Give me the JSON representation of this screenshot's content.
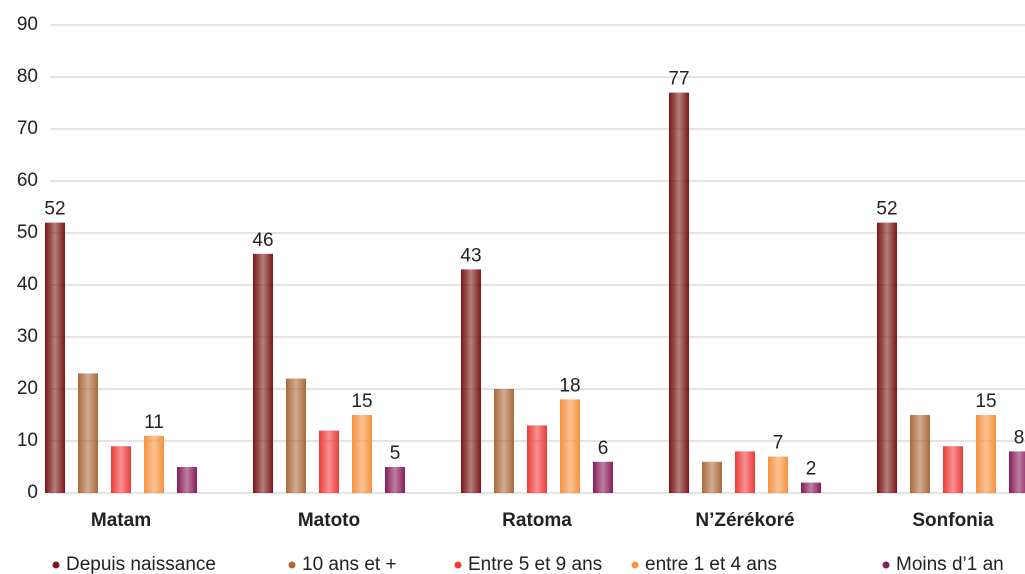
{
  "chart_data": {
    "type": "bar",
    "categories": [
      "Matam",
      "Matoto",
      "Ratoma",
      "N’Zérékoré",
      "Sonfonia"
    ],
    "series": [
      {
        "name": "Depuis naissance",
        "color": "#7a1616",
        "values": [
          52,
          46,
          43,
          77,
          52
        ],
        "value_labels": [
          52,
          46,
          43,
          77,
          52
        ]
      },
      {
        "name": "10 ans et +",
        "color": "#a86a3a",
        "values": [
          23,
          22,
          20,
          6,
          15
        ]
      },
      {
        "name": "Entre 5 et 9 ans",
        "color": "#ee3a3a",
        "values": [
          9,
          12,
          13,
          8,
          9
        ]
      },
      {
        "name": "entre 1 et 4 ans",
        "color": "#f7923e",
        "values": [
          11,
          15,
          18,
          7,
          15
        ],
        "value_labels": [
          11,
          15,
          18,
          7,
          15
        ]
      },
      {
        "name": "Moins d’1 an",
        "color": "#861a5a",
        "values": [
          5,
          5,
          6,
          2,
          8
        ],
        "value_labels": [
          null,
          5,
          6,
          2,
          8
        ]
      }
    ],
    "ylim": [
      0,
      90
    ],
    "yticks": [
      0,
      10,
      20,
      30,
      40,
      50,
      60,
      70,
      80,
      90
    ],
    "grid": true
  }
}
